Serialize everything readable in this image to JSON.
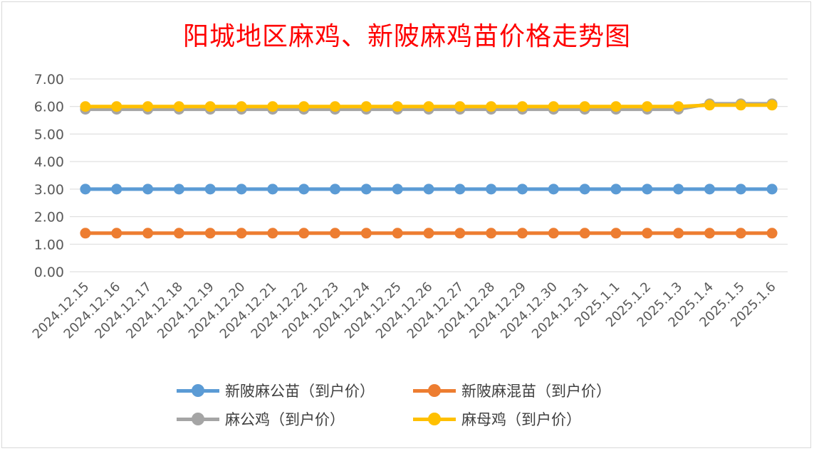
{
  "chart_data": {
    "type": "line",
    "title": "阳城地区麻鸡、新陂麻鸡苗价格走势图",
    "categories": [
      "2024.12.15",
      "2024.12.16",
      "2024.12.17",
      "2024.12.18",
      "2024.12.19",
      "2024.12.20",
      "2024.12.21",
      "2024.12.22",
      "2024.12.23",
      "2024.12.24",
      "2024.12.25",
      "2024.12.26",
      "2024.12.27",
      "2024.12.28",
      "2024.12.29",
      "2024.12.30",
      "2024.12.31",
      "2025.1.1",
      "2025.1.2",
      "2025.1.3",
      "2025.1.4",
      "2025.1.5",
      "2025.1.6"
    ],
    "ylim": [
      0,
      7
    ],
    "yticks": [
      "0.00",
      "1.00",
      "2.00",
      "3.00",
      "4.00",
      "5.00",
      "6.00",
      "7.00"
    ],
    "grid": true,
    "legend_position": "bottom",
    "series": [
      {
        "name": "新陂麻公苗（到户价）",
        "color": "#5b9bd5",
        "values": [
          3,
          3,
          3,
          3,
          3,
          3,
          3,
          3,
          3,
          3,
          3,
          3,
          3,
          3,
          3,
          3,
          3,
          3,
          3,
          3,
          3,
          3,
          3
        ]
      },
      {
        "name": "新陂麻混苗（到户价）",
        "color": "#ed7d31",
        "values": [
          1.4,
          1.4,
          1.4,
          1.4,
          1.4,
          1.4,
          1.4,
          1.4,
          1.4,
          1.4,
          1.4,
          1.4,
          1.4,
          1.4,
          1.4,
          1.4,
          1.4,
          1.4,
          1.4,
          1.4,
          1.4,
          1.4,
          1.4
        ]
      },
      {
        "name": "麻公鸡（到户价）",
        "color": "#a5a5a5",
        "values": [
          5.9,
          5.9,
          5.9,
          5.9,
          5.9,
          5.9,
          5.9,
          5.9,
          5.9,
          5.9,
          5.9,
          5.9,
          5.9,
          5.9,
          5.9,
          5.9,
          5.9,
          5.9,
          5.9,
          5.9,
          6.1,
          6.1,
          6.1
        ]
      },
      {
        "name": "麻母鸡（到户价）",
        "color": "#ffc000",
        "values": [
          6.0,
          6.0,
          6.0,
          6.0,
          6.0,
          6.0,
          6.0,
          6.0,
          6.0,
          6.0,
          6.0,
          6.0,
          6.0,
          6.0,
          6.0,
          6.0,
          6.0,
          6.0,
          6.0,
          6.0,
          6.05,
          6.05,
          6.05
        ]
      }
    ]
  }
}
